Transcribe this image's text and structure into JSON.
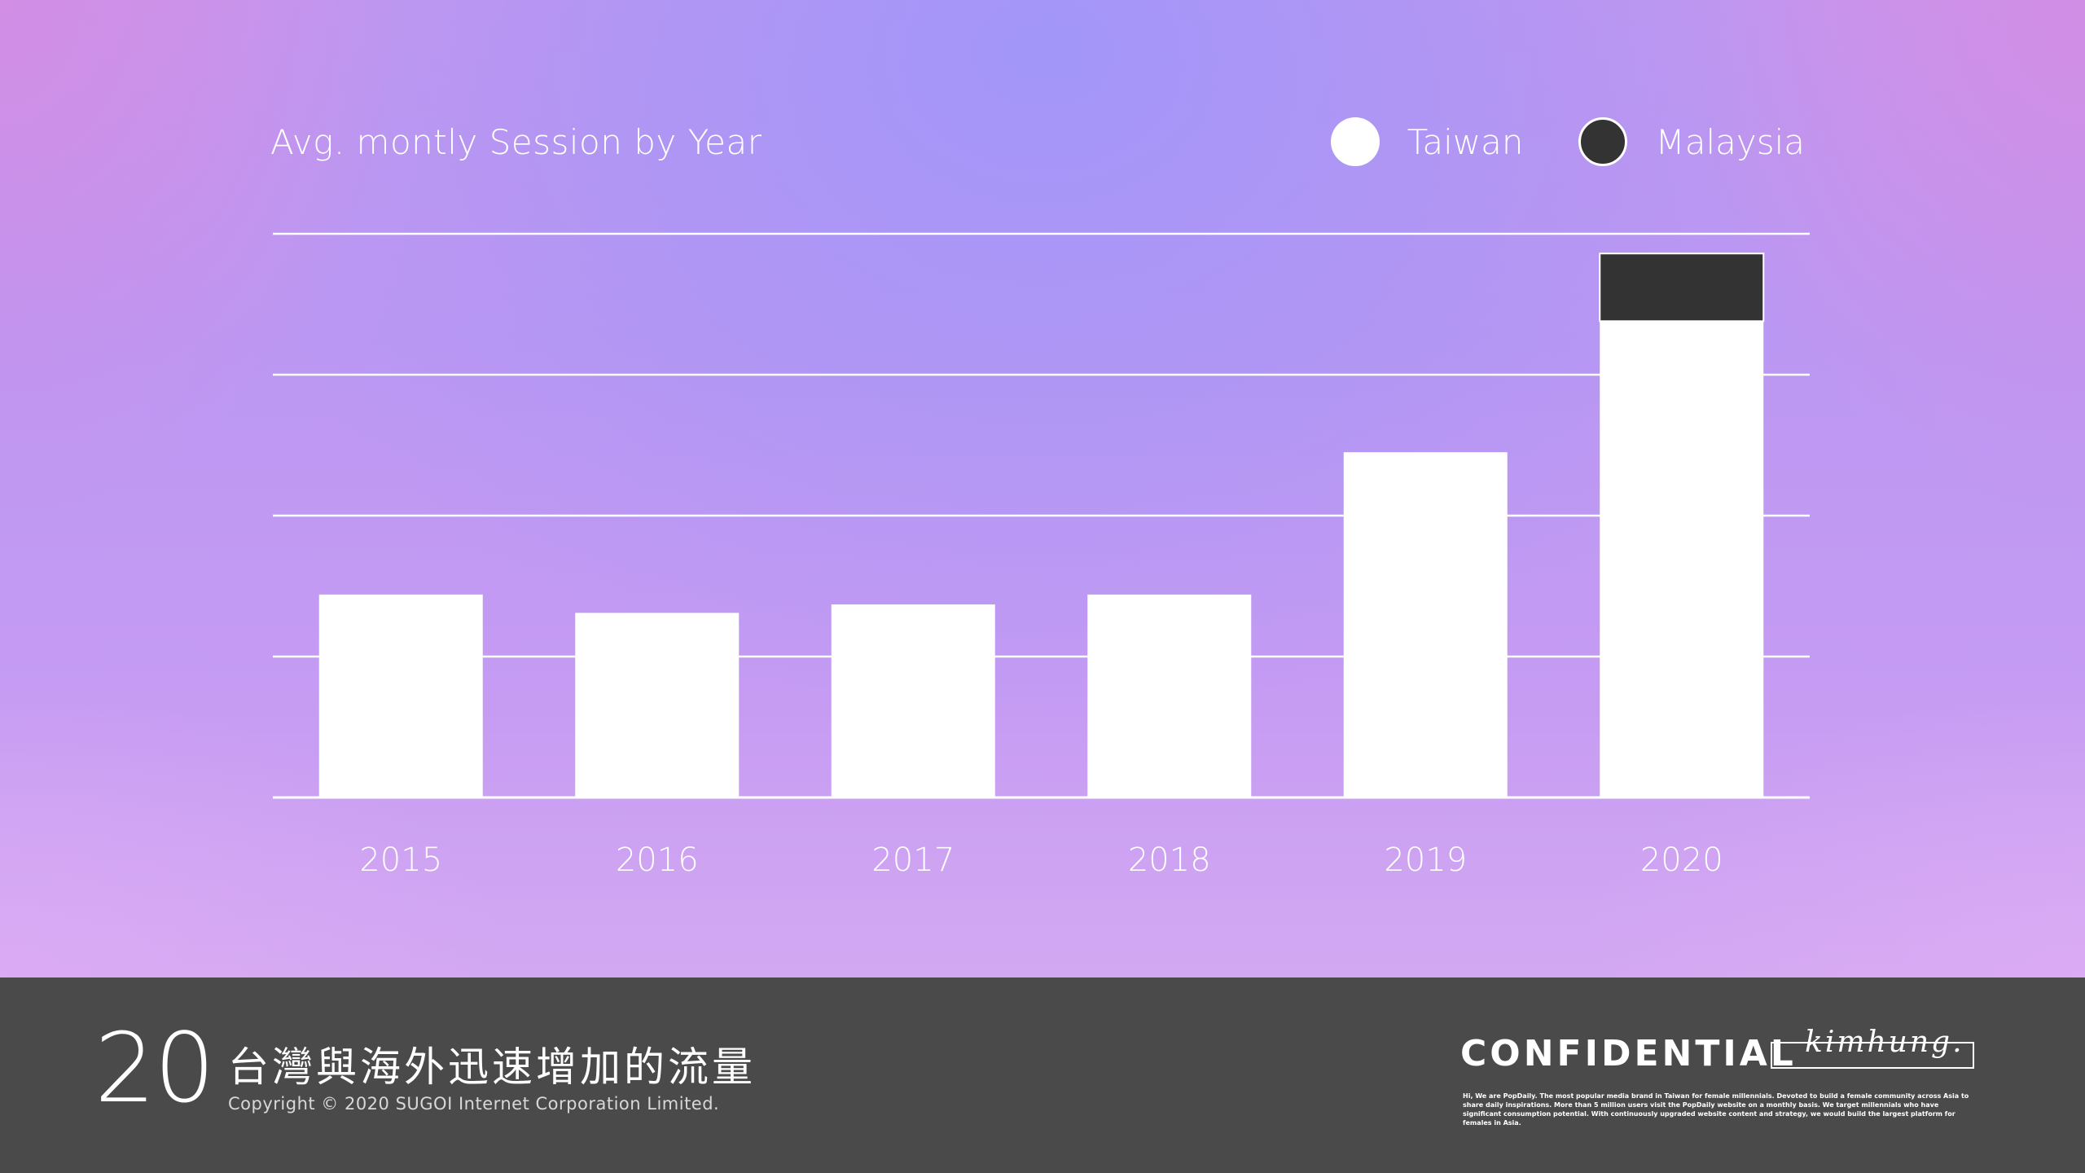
{
  "colors": {
    "taiwan": "#ffffff",
    "malaysia": "#333333",
    "gridline": "#ffffff",
    "footer_bg": "#4a4a4a",
    "text": "#ffffff"
  },
  "chart_data": {
    "type": "bar",
    "stacked": true,
    "title": "Avg. montly Session by Year",
    "xlabel": "",
    "ylabel": "",
    "categories": [
      "2015",
      "2016",
      "2017",
      "2018",
      "2019",
      "2020"
    ],
    "series": [
      {
        "name": "Taiwan",
        "color": "#ffffff",
        "values": [
          1.44,
          1.31,
          1.37,
          1.44,
          2.45,
          3.38
        ]
      },
      {
        "name": "Malaysia",
        "color": "#333333",
        "values": [
          0,
          0,
          0,
          0,
          0,
          0.48
        ]
      }
    ],
    "ylim": [
      0,
      4
    ],
    "gridlines": [
      0,
      1,
      2,
      3,
      4
    ],
    "grid": true,
    "y_tick_labels_shown": false,
    "legend_position": "top-right"
  },
  "footer": {
    "page_number": "20",
    "heading": "台灣與海外迅速增加的流量",
    "copyright": "Copyright © 2020 SUGOI Internet Corporation Limited.",
    "confidential": "CONFIDENTIAL",
    "signature": "kimhung.",
    "blurb": "Hi, We are PopDaily. The most popular media brand in Taiwan for female millennials. Devoted to build a female community across Asia to share daily inspirations. More than 5 million users visit the PopDaily website on a monthly basis. We target millennials who have significant consumption potential. With continuously upgraded website content and strategy, we would build the largest platform for females in Asia."
  }
}
